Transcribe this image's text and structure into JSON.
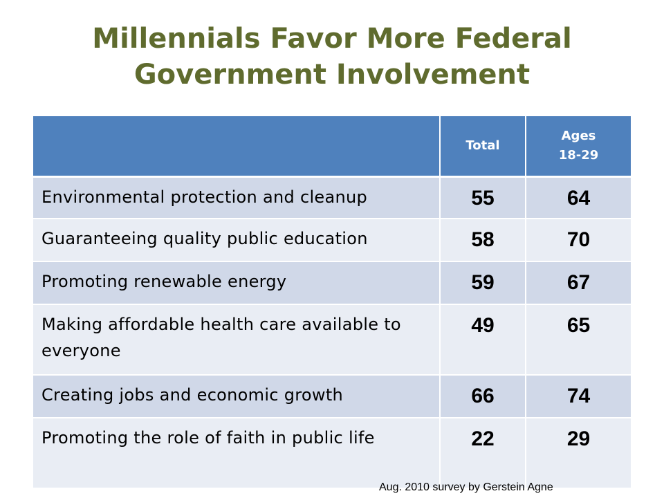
{
  "title_line1": "Millennials Favor More Federal",
  "title_line2": "Government Involvement",
  "chart_data": {
    "type": "table",
    "title": "Millennials Favor More Federal Government Involvement",
    "columns": [
      "",
      "Total",
      "Ages 18-29"
    ],
    "column_headers": {
      "total": "Total",
      "young_line1": "Ages",
      "young_line2": "18-29"
    },
    "rows": [
      {
        "label": "Environmental protection and cleanup",
        "total": "55",
        "young": "64"
      },
      {
        "label": "Guaranteeing quality public education",
        "total": "58",
        "young": "70"
      },
      {
        "label": "Promoting renewable energy",
        "total": "59",
        "young": "67"
      },
      {
        "label": "Making affordable health care available to everyone",
        "total": "49",
        "young": "65"
      },
      {
        "label": "Creating jobs and economic growth",
        "total": "66",
        "young": "74"
      },
      {
        "label": "Promoting the role of faith in public life",
        "total": "22",
        "young": "29"
      }
    ]
  },
  "source": "Aug. 2010 survey by Gerstein Agne",
  "colors": {
    "title": "#5f6b2e",
    "header": "#4f81bd",
    "row_odd": "#d0d8e8",
    "row_even": "#e9edf4"
  }
}
